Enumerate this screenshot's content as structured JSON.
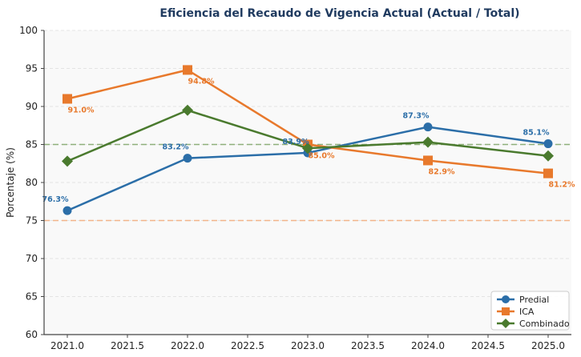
{
  "chart_data": {
    "type": "line",
    "title": "Eficiencia del Recaudo de Vigencia Actual (Actual / Total)",
    "xlabel": "",
    "ylabel": "Porcentaje (%)",
    "x": [
      2021,
      2022,
      2023,
      2024,
      2025
    ],
    "xlim": [
      2020.8,
      2025.2
    ],
    "ylim": [
      60,
      100
    ],
    "xticks": [
      "2021.0",
      "2021.5",
      "2022.0",
      "2022.5",
      "2023.0",
      "2023.5",
      "2024.0",
      "2024.5",
      "2025.0"
    ],
    "xtick_values": [
      2021.0,
      2021.5,
      2022.0,
      2022.5,
      2023.0,
      2023.5,
      2024.0,
      2024.5,
      2025.0
    ],
    "yticks": [
      60,
      65,
      70,
      75,
      80,
      85,
      90,
      95,
      100
    ],
    "grid": "horizontal dashed",
    "legend_position": "bottom-right",
    "series": [
      {
        "name": "Predial",
        "color": "#2b6ea8",
        "marker": "circle",
        "values": [
          76.3,
          83.2,
          83.9,
          87.3,
          85.1
        ],
        "labels": [
          "76.3%",
          "83.2%",
          "83.9%",
          "87.3%",
          "85.1%"
        ]
      },
      {
        "name": "ICA",
        "color": "#e8792c",
        "marker": "square",
        "values": [
          91.0,
          94.8,
          85.0,
          82.9,
          81.2
        ],
        "labels": [
          "91.0%",
          "94.8%",
          "85.0%",
          "82.9%",
          "81.2%"
        ]
      },
      {
        "name": "Combinado",
        "color": "#4a7a2e",
        "marker": "diamond",
        "values": [
          82.8,
          89.5,
          84.5,
          85.3,
          83.5
        ],
        "labels": []
      }
    ],
    "reference_lines": [
      {
        "value": 85,
        "color": "#8fb07a",
        "style": "dashed"
      },
      {
        "value": 75,
        "color": "#f2b48a",
        "style": "dashed"
      }
    ]
  }
}
